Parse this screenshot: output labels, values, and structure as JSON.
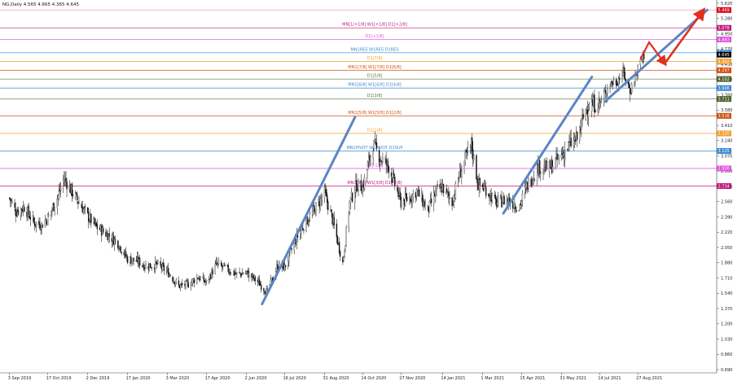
{
  "chart_data": {
    "type": "candlestick",
    "header": "NG,Daily  4.565 4.665 4.365 4.645",
    "ylim": [
      0.69,
      5.62
    ],
    "y_ticks": [
      "5.620",
      "5.280",
      "4.950",
      "4.770",
      "4.430",
      "4.090",
      "3.760",
      "3.580",
      "3.410",
      "3.240",
      "3.070",
      "2.900",
      "2.730",
      "2.560",
      "2.390",
      "2.220",
      "2.050",
      "1.880",
      "1.710",
      "1.540",
      "1.370",
      "1.200",
      "1.030",
      "0.860",
      "0.690"
    ],
    "x_ticks": [
      "3 Sep 2019",
      "17 Oct 2019",
      "2 Dec 2019",
      "17 Jan 2020",
      "3 Mar 2020",
      "17 Apr 2020",
      "2 Jun 2020",
      "16 Jul 2020",
      "31 Aug 2020",
      "14 Oct 2020",
      "27 Nov 2020",
      "14 Jan 2021",
      "1 Mar 2021",
      "15 Apr 2021",
      "31 May 2021",
      "14 Jul 2021",
      "27 Aug 2021"
    ],
    "levels": [
      {
        "value": 5.469,
        "label": "",
        "tag": "5.469",
        "color": "#e8a0a8",
        "tagcolor": "#e0001b"
      },
      {
        "value": 5.078,
        "label": "MN[1/+1/8] W1[+1/8] D1[+2/8]",
        "tag": "5.078",
        "color": "#c0187a",
        "tagcolor": "#c0187a"
      },
      {
        "value": 4.883,
        "label": "D1[+1/8]",
        "tag": "4.883",
        "color": "#e050e0",
        "tagcolor": "#e050e0"
      },
      {
        "value": 4.688,
        "label": "MN1RES W1RES D1RES",
        "tag": "4.688",
        "color": "#3a8ad0",
        "tagcolor": "#3a8ad0"
      },
      {
        "value": 4.492,
        "label": "D1[7/8]",
        "tag": "4.492",
        "color": "#f0a030",
        "tagcolor": "#f0a030"
      },
      {
        "value": 4.297,
        "label": "MN1[7/8] W1[7/8] D1[6/8]",
        "tag": "4.297",
        "color": "#d05010",
        "tagcolor": "#d05010"
      },
      {
        "value": 4.102,
        "label": "D1[5/8]",
        "tag": "4.102",
        "color": "#607040",
        "tagcolor": "#505f30"
      },
      {
        "value": 3.906,
        "label": "MN1[6/8] W1[6/8] D1[4/8]",
        "tag": "3.906",
        "color": "#3a8ad0",
        "tagcolor": "#3a8ad0"
      },
      {
        "value": 3.711,
        "label": "D1[3/8]",
        "tag": "3.711",
        "color": "#607040",
        "tagcolor": "#505f30"
      },
      {
        "value": 3.516,
        "label": "MN1[5/8] W1[5/8] D1[2/8]",
        "tag": "3.516",
        "color": "#d05010",
        "tagcolor": "#d05010"
      },
      {
        "value": 3.32,
        "label": "D1[1/8]",
        "tag": "3.320",
        "color": "#f0a030",
        "tagcolor": "#f0a030"
      },
      {
        "value": 3.125,
        "label": "MN1PIVOT W1PIVOT D1SUP",
        "tag": "3.125",
        "color": "#3a8ad0",
        "tagcolor": "#3a8ad0"
      },
      {
        "value": 2.93,
        "label": "D1[-1/8]",
        "tag": "2.930",
        "color": "#e050e0",
        "tagcolor": "#e050e0"
      },
      {
        "value": 2.734,
        "label": "MN1[3/8] W1[3/8] D1[-2/8]",
        "tag": "2.734",
        "color": "#c0187a",
        "tagcolor": "#c0187a"
      }
    ],
    "current_price": {
      "value": 4.645,
      "tag": "4.645"
    },
    "trendlines": [
      {
        "x1": "2020-06-20",
        "y1": 1.42,
        "x2": "2020-10-05",
        "y2": 3.5,
        "color": "#5b86c5"
      },
      {
        "x1": "2021-03-25",
        "y1": 2.43,
        "x2": "2021-07-05",
        "y2": 4.15,
        "color": "#5b86c5"
      },
      {
        "x1": "2021-07-20",
        "y1": 3.68,
        "x2": "2021-11-15",
        "y2": 5.47,
        "color": "#5b86c5"
      }
    ],
    "projection": {
      "color": "#e03020",
      "points": [
        [
          "2021-08-30",
          4.55
        ],
        [
          "2021-09-09",
          4.85
        ],
        [
          "2021-09-27",
          4.45
        ]
      ],
      "arrow": {
        "x1": "2021-09-27",
        "y1": 4.45,
        "x2": "2021-11-10",
        "y2": 5.45
      }
    },
    "x_start": "2019-08-23",
    "x_end": "2021-11-24",
    "keyframes": [
      [
        "2019-09-03",
        2.6
      ],
      [
        "2019-09-10",
        2.45
      ],
      [
        "2019-09-20",
        2.5
      ],
      [
        "2019-10-01",
        2.33
      ],
      [
        "2019-10-10",
        2.3
      ],
      [
        "2019-10-17",
        2.38
      ],
      [
        "2019-10-28",
        2.6
      ],
      [
        "2019-11-05",
        2.82
      ],
      [
        "2019-11-12",
        2.7
      ],
      [
        "2019-11-22",
        2.55
      ],
      [
        "2019-12-02",
        2.4
      ],
      [
        "2019-12-12",
        2.28
      ],
      [
        "2019-12-24",
        2.2
      ],
      [
        "2020-01-06",
        2.1
      ],
      [
        "2020-01-17",
        1.92
      ],
      [
        "2020-01-28",
        1.9
      ],
      [
        "2020-02-07",
        1.84
      ],
      [
        "2020-02-20",
        1.86
      ],
      [
        "2020-03-03",
        1.78
      ],
      [
        "2020-03-16",
        1.62
      ],
      [
        "2020-03-27",
        1.64
      ],
      [
        "2020-04-07",
        1.72
      ],
      [
        "2020-04-17",
        1.66
      ],
      [
        "2020-04-28",
        1.86
      ],
      [
        "2020-05-08",
        1.82
      ],
      [
        "2020-05-22",
        1.75
      ],
      [
        "2020-06-02",
        1.77
      ],
      [
        "2020-06-15",
        1.67
      ],
      [
        "2020-06-26",
        1.55
      ],
      [
        "2020-07-08",
        1.85
      ],
      [
        "2020-07-16",
        1.83
      ],
      [
        "2020-07-27",
        2.1
      ],
      [
        "2020-08-07",
        2.3
      ],
      [
        "2020-08-18",
        2.45
      ],
      [
        "2020-08-31",
        2.65
      ],
      [
        "2020-09-08",
        2.4
      ],
      [
        "2020-09-21",
        1.88
      ],
      [
        "2020-09-29",
        2.55
      ],
      [
        "2020-10-07",
        2.75
      ],
      [
        "2020-10-14",
        2.72
      ],
      [
        "2020-10-26",
        3.2
      ],
      [
        "2020-11-03",
        3.05
      ],
      [
        "2020-11-13",
        2.95
      ],
      [
        "2020-11-27",
        2.55
      ],
      [
        "2020-12-07",
        2.6
      ],
      [
        "2020-12-15",
        2.68
      ],
      [
        "2020-12-28",
        2.46
      ],
      [
        "2021-01-07",
        2.68
      ],
      [
        "2021-01-14",
        2.72
      ],
      [
        "2021-01-25",
        2.55
      ],
      [
        "2021-02-02",
        2.85
      ],
      [
        "2021-02-16",
        3.2
      ],
      [
        "2021-02-24",
        2.75
      ],
      [
        "2021-03-05",
        2.7
      ],
      [
        "2021-03-16",
        2.55
      ],
      [
        "2021-03-30",
        2.58
      ],
      [
        "2021-04-12",
        2.5
      ],
      [
        "2021-04-22",
        2.75
      ],
      [
        "2021-05-04",
        2.95
      ],
      [
        "2021-05-17",
        2.93
      ],
      [
        "2021-05-31",
        3.08
      ],
      [
        "2021-06-10",
        3.2
      ],
      [
        "2021-06-18",
        3.26
      ],
      [
        "2021-06-29",
        3.62
      ],
      [
        "2021-07-07",
        3.65
      ],
      [
        "2021-07-16",
        3.68
      ],
      [
        "2021-07-26",
        4.0
      ],
      [
        "2021-08-03",
        4.05
      ],
      [
        "2021-08-10",
        4.25
      ],
      [
        "2021-08-18",
        3.85
      ],
      [
        "2021-08-24",
        4.15
      ],
      [
        "2021-08-31",
        4.55
      ],
      [
        "2021-09-03",
        4.645
      ]
    ]
  }
}
